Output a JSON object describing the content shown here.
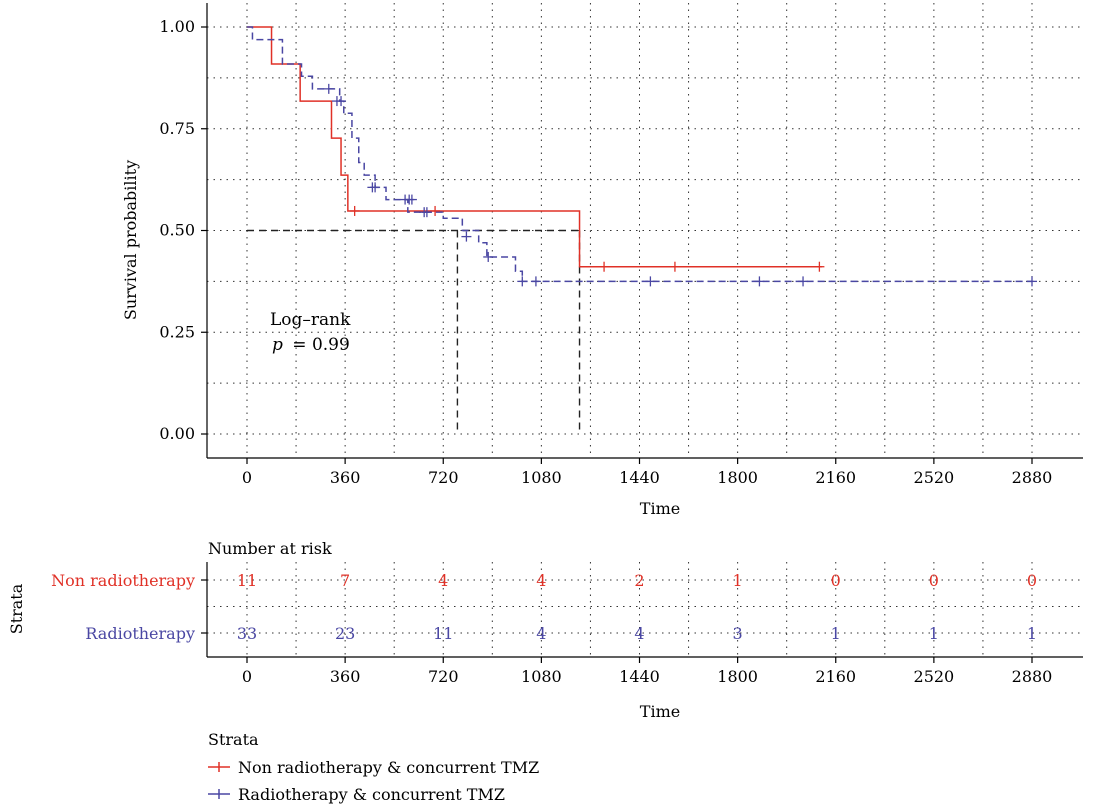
{
  "chart_data": [
    {
      "type": "line",
      "subtype": "kaplan-meier",
      "title": "",
      "xlabel": "Time",
      "ylabel": "Survival probability",
      "xlim": [
        -200,
        3060
      ],
      "ylim": [
        0,
        1
      ],
      "xticks": [
        "0",
        "360",
        "720",
        "1080",
        "1440",
        "1800",
        "2160",
        "2520",
        "2880"
      ],
      "yticks": [
        "0.00",
        "0.25",
        "0.50",
        "0.75",
        "1.00"
      ],
      "grid": true,
      "annotation": {
        "line1": "Log–rank",
        "p_symbol": "p",
        "p_value": "= 0.99"
      },
      "median_lines": [
        {
          "series": "Radiotherapy & concurrent TMZ",
          "x": 772,
          "y": 0.5
        },
        {
          "series": "Non radiotherapy & concurrent TMZ",
          "x": 1220,
          "y": 0.5
        }
      ],
      "series": [
        {
          "name": "Non radiotherapy & concurrent TMZ",
          "color": "#e03127",
          "dash": "solid",
          "steps": [
            [
              0,
              1.0
            ],
            [
              90,
              0.909
            ],
            [
              195,
              0.818
            ],
            [
              310,
              0.727
            ],
            [
              345,
              0.636
            ],
            [
              370,
              0.548
            ],
            [
              1220,
              0.548
            ],
            [
              1220,
              0.411
            ],
            [
              2110,
              0.411
            ]
          ],
          "censored": [
            [
              395,
              0.548
            ],
            [
              690,
              0.548
            ],
            [
              1310,
              0.411
            ],
            [
              1570,
              0.411
            ],
            [
              2100,
              0.411
            ]
          ]
        },
        {
          "name": "Radiotherapy & concurrent TMZ",
          "color": "#4a47a3",
          "dash": "dashed",
          "steps": [
            [
              0,
              1.0
            ],
            [
              20,
              0.969
            ],
            [
              120,
              0.969
            ],
            [
              130,
              0.909
            ],
            [
              200,
              0.879
            ],
            [
              240,
              0.848
            ],
            [
              340,
              0.818
            ],
            [
              355,
              0.788
            ],
            [
              385,
              0.727
            ],
            [
              410,
              0.667
            ],
            [
              430,
              0.636
            ],
            [
              470,
              0.606
            ],
            [
              510,
              0.576
            ],
            [
              590,
              0.545
            ],
            [
              720,
              0.53
            ],
            [
              790,
              0.5
            ],
            [
              850,
              0.47
            ],
            [
              880,
              0.435
            ],
            [
              985,
              0.4
            ],
            [
              1010,
              0.375
            ],
            [
              2880,
              0.375
            ]
          ],
          "censored": [
            [
              300,
              0.848
            ],
            [
              330,
              0.818
            ],
            [
              345,
              0.818
            ],
            [
              460,
              0.606
            ],
            [
              470,
              0.606
            ],
            [
              580,
              0.576
            ],
            [
              595,
              0.576
            ],
            [
              605,
              0.576
            ],
            [
              650,
              0.545
            ],
            [
              660,
              0.545
            ],
            [
              805,
              0.485
            ],
            [
              885,
              0.435
            ],
            [
              1010,
              0.375
            ],
            [
              1060,
              0.375
            ],
            [
              1480,
              0.375
            ],
            [
              1880,
              0.375
            ],
            [
              2040,
              0.375
            ],
            [
              2880,
              0.375
            ]
          ]
        }
      ]
    },
    {
      "type": "table",
      "title": "Number at risk",
      "ylabel": "Strata",
      "xlabel": "Time",
      "times": [
        "0",
        "360",
        "720",
        "1080",
        "1440",
        "1800",
        "2160",
        "2520",
        "2880"
      ],
      "rows": [
        {
          "label": "Non radiotherapy",
          "color": "#e03127",
          "values": [
            "11",
            "7",
            "4",
            "4",
            "2",
            "1",
            "0",
            "0",
            "0"
          ]
        },
        {
          "label": "Radiotherapy",
          "color": "#4a47a3",
          "values": [
            "33",
            "23",
            "11",
            "4",
            "4",
            "3",
            "1",
            "1",
            "1"
          ]
        }
      ]
    }
  ],
  "legend": {
    "title": "Strata",
    "items": [
      {
        "label": "Non radiotherapy & concurrent TMZ",
        "color": "#e03127"
      },
      {
        "label": "Radiotherapy & concurrent TMZ",
        "color": "#4a47a3"
      }
    ]
  }
}
